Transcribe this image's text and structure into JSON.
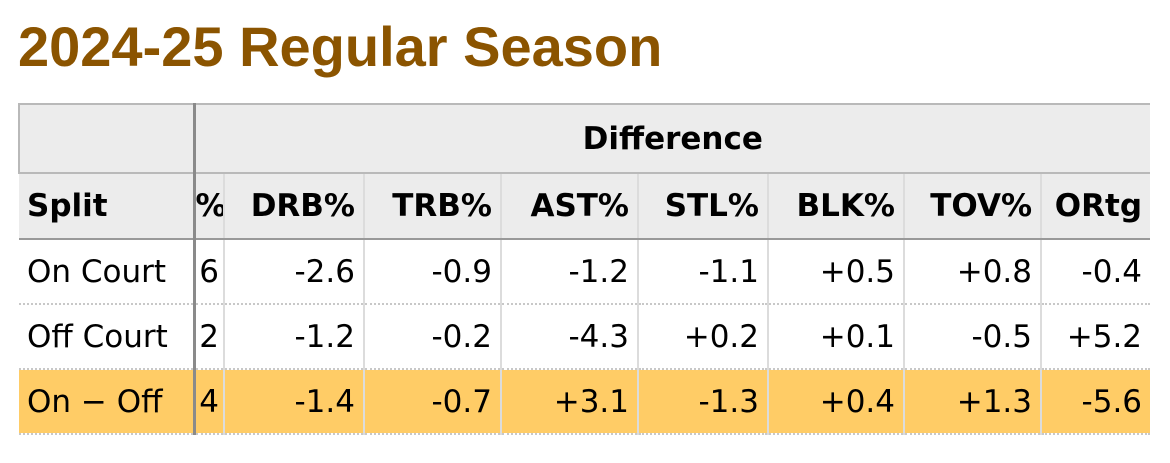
{
  "title": "2024-25 Regular Season",
  "table": {
    "group_header": "Difference",
    "columns": [
      "Split",
      "%",
      "DRB%",
      "TRB%",
      "AST%",
      "STL%",
      "BLK%",
      "TOV%",
      "ORtg"
    ],
    "rows": [
      {
        "split": "On Court",
        "cut": "6",
        "drb": "-2.6",
        "trb": "-0.9",
        "ast": "-1.2",
        "stl": "-1.1",
        "blk": "+0.5",
        "tov": "+0.8",
        "ortg": "-0.4"
      },
      {
        "split": "Off Court",
        "cut": "2",
        "drb": "-1.2",
        "trb": "-0.2",
        "ast": "-4.3",
        "stl": "+0.2",
        "blk": "+0.1",
        "tov": "-0.5",
        "ortg": "+5.2"
      },
      {
        "split": "On − Off",
        "cut": "4",
        "drb": "-1.4",
        "trb": "-0.7",
        "ast": "+3.1",
        "stl": "-1.3",
        "blk": "+0.4",
        "tov": "+1.3",
        "ortg": "-5.6"
      }
    ]
  },
  "colors": {
    "title": "#8b5400",
    "header_bg": "#ececec",
    "highlight_row": "#ffcc66"
  }
}
